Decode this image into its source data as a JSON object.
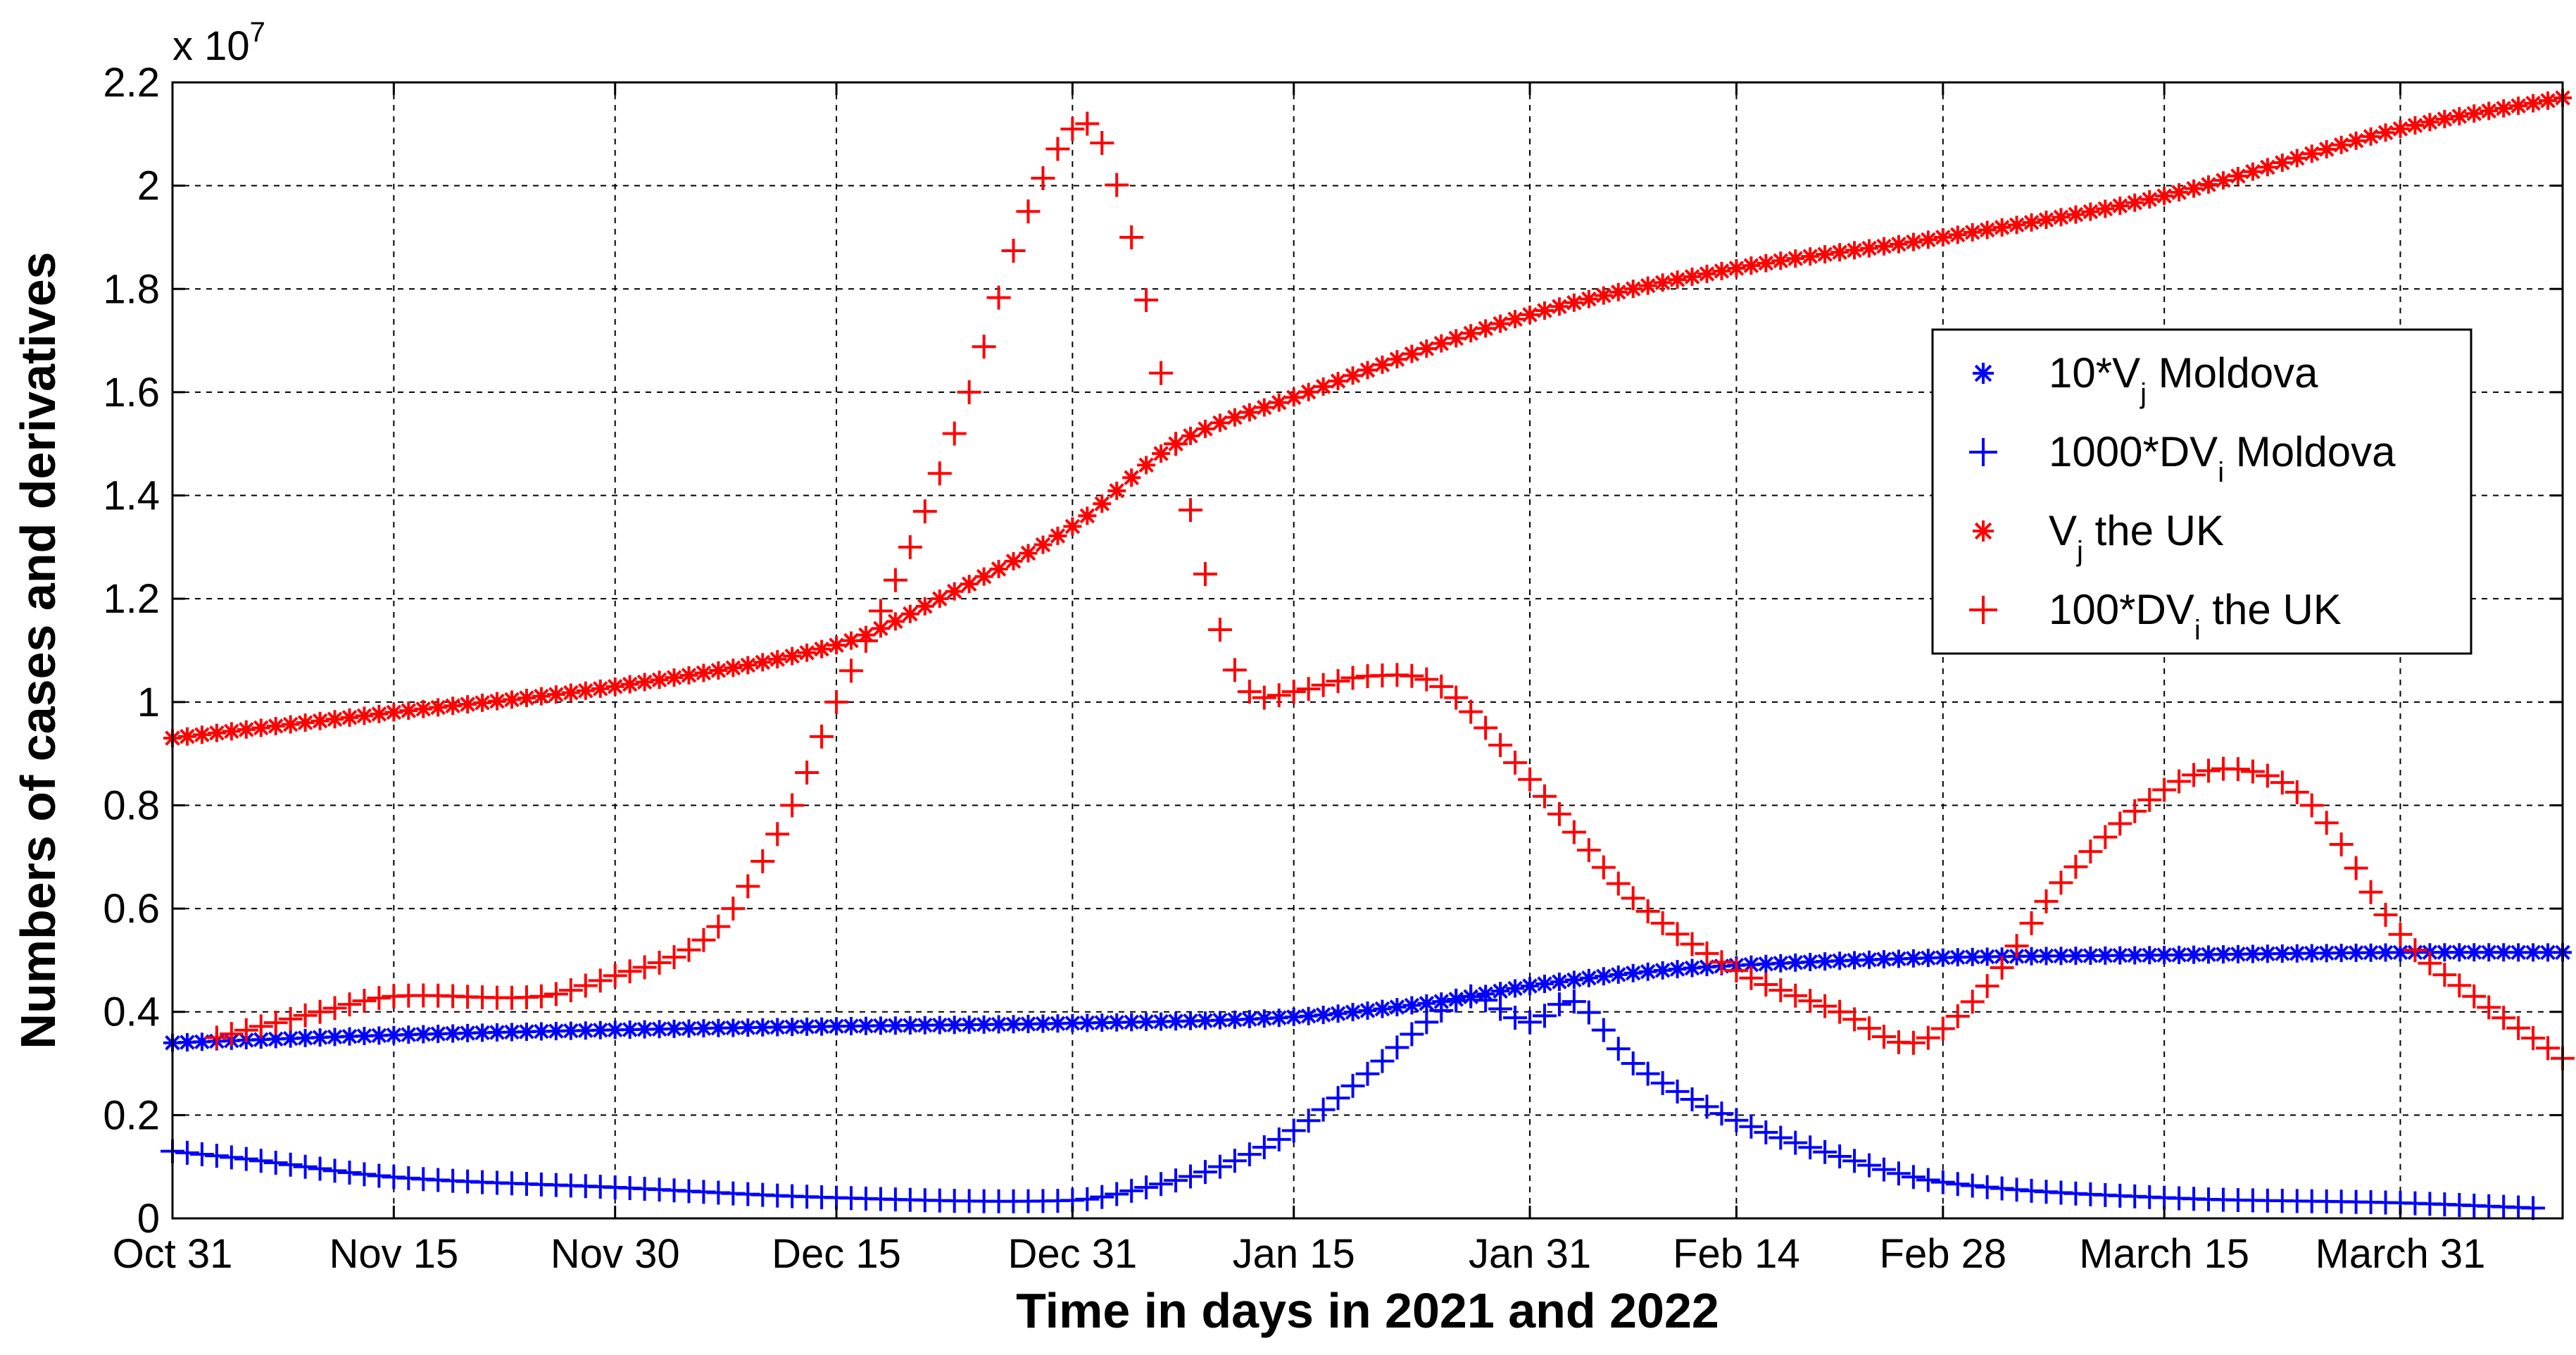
{
  "chart_data": {
    "type": "scatter",
    "title": "",
    "xlabel": "Time in days in 2021 and 2022",
    "ylabel": "Numbers of cases and derivatives",
    "y_exponent_label": "x 10",
    "y_exponent_power": "7",
    "y_multiplier": 10000000,
    "xlim": [
      "2021-10-31",
      "2022-04-11"
    ],
    "ylim": [
      0,
      2.2
    ],
    "grid": true,
    "grid_style": "dashed",
    "legend_position": "right",
    "x_ticks": [
      {
        "date": "2021-10-31",
        "label": "Oct 31"
      },
      {
        "date": "2021-11-15",
        "label": "Nov 15"
      },
      {
        "date": "2021-11-30",
        "label": "Nov 30"
      },
      {
        "date": "2021-12-15",
        "label": "Dec 15"
      },
      {
        "date": "2021-12-31",
        "label": "Dec 31"
      },
      {
        "date": "2022-01-15",
        "label": "Jan 15"
      },
      {
        "date": "2022-01-31",
        "label": "Jan 31"
      },
      {
        "date": "2022-02-14",
        "label": "Feb 14"
      },
      {
        "date": "2022-02-28",
        "label": "Feb 28"
      },
      {
        "date": "2022-03-15",
        "label": "March 15"
      },
      {
        "date": "2022-03-31",
        "label": "March 31"
      }
    ],
    "y_ticks": [
      {
        "value": 0,
        "label": "0"
      },
      {
        "value": 0.2,
        "label": "0.2"
      },
      {
        "value": 0.4,
        "label": "0.4"
      },
      {
        "value": 0.6,
        "label": "0.6"
      },
      {
        "value": 0.8,
        "label": "0.8"
      },
      {
        "value": 1,
        "label": "1"
      },
      {
        "value": 1.2,
        "label": "1.2"
      },
      {
        "value": 1.4,
        "label": "1.4"
      },
      {
        "value": 1.6,
        "label": "1.6"
      },
      {
        "value": 1.8,
        "label": "1.8"
      },
      {
        "value": 2,
        "label": "2"
      },
      {
        "value": 2.2,
        "label": "2.2"
      }
    ],
    "series": [
      {
        "name": "10*Vj Moldova",
        "legend_main": "10*V",
        "legend_sub": "j",
        "legend_rest": " Moldova",
        "marker": "asterisk",
        "color": "#0000ff",
        "x_start": "2021-10-31",
        "x_end": "2022-04-11",
        "x_step_days": 1,
        "anchors": [
          [
            "2021-10-31",
            0.34
          ],
          [
            "2021-11-15",
            0.355
          ],
          [
            "2021-11-30",
            0.365
          ],
          [
            "2021-12-15",
            0.372
          ],
          [
            "2021-12-31",
            0.378
          ],
          [
            "2022-01-15",
            0.39
          ],
          [
            "2022-01-25",
            0.42
          ],
          [
            "2022-01-31",
            0.45
          ],
          [
            "2022-02-07",
            0.475
          ],
          [
            "2022-02-14",
            0.49
          ],
          [
            "2022-02-28",
            0.505
          ],
          [
            "2022-03-15",
            0.51
          ],
          [
            "2022-03-31",
            0.515
          ],
          [
            "2022-04-11",
            0.515
          ]
        ]
      },
      {
        "name": "1000*DVi Moldova",
        "legend_main": "1000*DV",
        "legend_sub": "i",
        "legend_rest": " Moldova",
        "marker": "plus",
        "color": "#0000ff",
        "x_start": "2021-10-31",
        "x_end": "2022-04-09",
        "x_step_days": 1,
        "anchors": [
          [
            "2021-10-31",
            0.13
          ],
          [
            "2021-11-05",
            0.115
          ],
          [
            "2021-11-15",
            0.08
          ],
          [
            "2021-11-30",
            0.06
          ],
          [
            "2021-12-15",
            0.04
          ],
          [
            "2021-12-31",
            0.035
          ],
          [
            "2022-01-05",
            0.06
          ],
          [
            "2022-01-10",
            0.1
          ],
          [
            "2022-01-15",
            0.17
          ],
          [
            "2022-01-20",
            0.28
          ],
          [
            "2022-01-24",
            0.38
          ],
          [
            "2022-01-27",
            0.43
          ],
          [
            "2022-01-31",
            0.38
          ],
          [
            "2022-02-03",
            0.42
          ],
          [
            "2022-02-07",
            0.3
          ],
          [
            "2022-02-14",
            0.19
          ],
          [
            "2022-02-21",
            0.12
          ],
          [
            "2022-02-28",
            0.07
          ],
          [
            "2022-03-15",
            0.04
          ],
          [
            "2022-03-31",
            0.03
          ],
          [
            "2022-04-09",
            0.02
          ]
        ]
      },
      {
        "name": "Vj the UK",
        "legend_main": "V",
        "legend_sub": "j",
        "legend_rest": " the UK",
        "marker": "asterisk",
        "color": "#ff0000",
        "x_start": "2021-10-31",
        "x_end": "2022-04-11",
        "x_step_days": 1,
        "anchors": [
          [
            "2021-10-31",
            0.93
          ],
          [
            "2021-11-15",
            0.98
          ],
          [
            "2021-11-30",
            1.03
          ],
          [
            "2021-12-15",
            1.11
          ],
          [
            "2021-12-22",
            1.2
          ],
          [
            "2021-12-31",
            1.34
          ],
          [
            "2022-01-07",
            1.5
          ],
          [
            "2022-01-15",
            1.59
          ],
          [
            "2022-01-31",
            1.75
          ],
          [
            "2022-02-14",
            1.84
          ],
          [
            "2022-02-28",
            1.9
          ],
          [
            "2022-03-15",
            1.98
          ],
          [
            "2022-03-31",
            2.11
          ],
          [
            "2022-04-11",
            2.17
          ]
        ]
      },
      {
        "name": "100*DVi the UK",
        "legend_main": "100*DV",
        "legend_sub": "i",
        "legend_rest": " the UK",
        "marker": "plus",
        "color": "#ff0000",
        "x_start": "2021-11-03",
        "x_end": "2022-04-11",
        "x_step_days": 1,
        "anchors": [
          [
            "2021-11-03",
            0.35
          ],
          [
            "2021-11-10",
            0.4
          ],
          [
            "2021-11-15",
            0.43
          ],
          [
            "2021-11-25",
            0.43
          ],
          [
            "2021-11-30",
            0.47
          ],
          [
            "2021-12-05",
            0.52
          ],
          [
            "2021-12-08",
            0.6
          ],
          [
            "2021-12-12",
            0.8
          ],
          [
            "2021-12-15",
            1.0
          ],
          [
            "2021-12-20",
            1.3
          ],
          [
            "2021-12-24",
            1.6
          ],
          [
            "2021-12-28",
            1.95
          ],
          [
            "2022-01-01",
            2.12
          ],
          [
            "2022-01-04",
            1.9
          ],
          [
            "2022-01-07",
            1.5
          ],
          [
            "2022-01-10",
            1.14
          ],
          [
            "2022-01-12",
            1.02
          ],
          [
            "2022-01-15",
            1.02
          ],
          [
            "2022-01-20",
            1.05
          ],
          [
            "2022-01-25",
            1.03
          ],
          [
            "2022-01-31",
            0.85
          ],
          [
            "2022-02-07",
            0.62
          ],
          [
            "2022-02-14",
            0.48
          ],
          [
            "2022-02-21",
            0.4
          ],
          [
            "2022-02-26",
            0.34
          ],
          [
            "2022-03-03",
            0.45
          ],
          [
            "2022-03-08",
            0.65
          ],
          [
            "2022-03-15",
            0.83
          ],
          [
            "2022-03-20",
            0.87
          ],
          [
            "2022-03-25",
            0.8
          ],
          [
            "2022-03-31",
            0.55
          ],
          [
            "2022-04-05",
            0.43
          ],
          [
            "2022-04-11",
            0.31
          ]
        ]
      }
    ]
  }
}
